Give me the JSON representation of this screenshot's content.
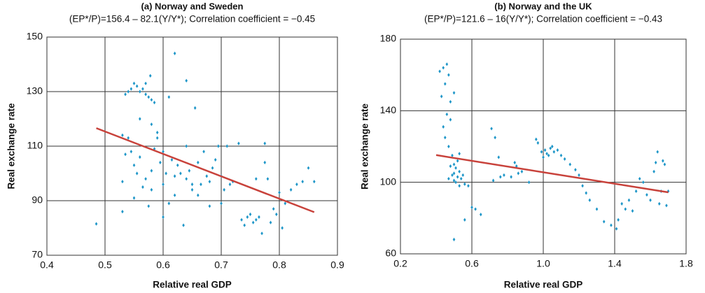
{
  "chart_data": [
    {
      "type": "scatter",
      "title": "(a) Norway and Sweden",
      "subtitle": "(EP*/P)=156.4 – 82.1(Y/Y*); Correlation coefficient = −0.45",
      "xlabel": "Relative real GDP",
      "ylabel": "Real exchange rate",
      "xlim": [
        0.4,
        0.9
      ],
      "ylim": [
        70,
        150
      ],
      "xticks": [
        0.4,
        0.5,
        0.6,
        0.7,
        0.8,
        0.9
      ],
      "yticks": [
        70,
        90,
        110,
        130,
        150
      ],
      "grid": true,
      "series": [
        {
          "color": "#1e96c8",
          "x": [
            0.485,
            0.53,
            0.53,
            0.535,
            0.54,
            0.545,
            0.55,
            0.555,
            0.56,
            0.565,
            0.57,
            0.575,
            0.58,
            0.585,
            0.57,
            0.578,
            0.545,
            0.55,
            0.555,
            0.56,
            0.565,
            0.57,
            0.575,
            0.58,
            0.585,
            0.59,
            0.595,
            0.6,
            0.6,
            0.605,
            0.61,
            0.61,
            0.615,
            0.62,
            0.62,
            0.625,
            0.63,
            0.635,
            0.64,
            0.64,
            0.645,
            0.65,
            0.655,
            0.66,
            0.665,
            0.67,
            0.675,
            0.68,
            0.685,
            0.69,
            0.695,
            0.7,
            0.705,
            0.71,
            0.715,
            0.73,
            0.735,
            0.74,
            0.745,
            0.75,
            0.755,
            0.76,
            0.765,
            0.77,
            0.775,
            0.775,
            0.78,
            0.785,
            0.79,
            0.795,
            0.8,
            0.805,
            0.81,
            0.82,
            0.83,
            0.84,
            0.86,
            0.85,
            0.59,
            0.54,
            0.56,
            0.58,
            0.6,
            0.62,
            0.64,
            0.66,
            0.68,
            0.7,
            0.72,
            0.76,
            0.65,
            0.58,
            0.55,
            0.53,
            0.535
          ],
          "values": [
            81.5,
            86,
            114,
            129,
            130,
            131,
            133,
            132,
            130,
            131,
            129,
            128,
            127,
            126,
            133,
            135.8,
            108,
            103,
            100,
            106,
            95,
            98,
            88,
            101,
            109,
            113,
            104,
            96,
            84,
            100,
            128,
            89,
            105,
            144,
            92,
            103,
            100,
            81,
            134,
            98,
            101,
            94,
            124,
            104,
            96,
            108,
            99,
            97,
            102,
            105,
            110,
            99,
            94,
            110,
            96,
            111,
            83,
            81,
            84,
            85,
            82,
            83,
            84,
            78,
            111,
            104,
            98,
            82,
            87,
            85,
            93,
            80,
            89,
            94,
            96,
            97,
            97,
            102,
            115,
            113,
            120,
            118,
            108,
            99,
            110,
            92,
            88,
            89,
            97,
            98,
            96,
            94,
            91,
            97,
            107
          ]
        }
      ],
      "fit": {
        "color": "#c8423b",
        "x": [
          0.485,
          0.86
        ],
        "values": [
          116.6,
          85.8
        ]
      }
    },
    {
      "type": "scatter",
      "title": "(b) Norway and the UK",
      "subtitle": "(EP*/P)=121.6 – 16(Y/Y*); Correlation coefficient = −0.43",
      "xlabel": "Relative real GDP",
      "ylabel": "Real exchange rate",
      "xlim": [
        0.2,
        1.8
      ],
      "ylim": [
        60,
        180
      ],
      "xticks": [
        0.2,
        0.6,
        {
          "value": 1,
          "label": "1.0"
        },
        1.4,
        1.8
      ],
      "yticks": [
        60,
        100,
        140,
        180
      ],
      "grid": true,
      "series": [
        {
          "color": "#1e96c8",
          "x": [
            0.42,
            0.43,
            0.44,
            0.45,
            0.46,
            0.47,
            0.48,
            0.5,
            0.44,
            0.45,
            0.46,
            0.47,
            0.48,
            0.49,
            0.5,
            0.5,
            0.51,
            0.51,
            0.52,
            0.52,
            0.53,
            0.53,
            0.54,
            0.55,
            0.56,
            0.5,
            0.56,
            0.58,
            0.6,
            0.62,
            0.65,
            0.47,
            0.48,
            0.49,
            0.5,
            0.53,
            0.71,
            0.73,
            0.72,
            0.75,
            0.76,
            0.78,
            0.82,
            0.84,
            0.85,
            0.86,
            0.88,
            0.92,
            0.96,
            0.97,
            0.99,
            1.0,
            1.01,
            1.02,
            1.03,
            1.04,
            1.05,
            1.06,
            1.08,
            1.1,
            1.12,
            1.15,
            1.18,
            1.2,
            1.22,
            1.24,
            1.26,
            1.3,
            1.34,
            1.38,
            1.41,
            1.42,
            1.44,
            1.46,
            1.48,
            1.5,
            1.52,
            1.54,
            1.56,
            1.58,
            1.6,
            1.62,
            1.63,
            1.64,
            1.65,
            1.66,
            1.67,
            1.68,
            1.69,
            1.7
          ],
          "values": [
            162,
            148,
            164,
            155,
            166,
            160,
            145,
            150,
            131,
            125,
            138,
            120,
            135,
            115,
            110,
            105,
            108,
            100,
            112,
            103,
            106,
            116,
            102,
            104,
            99,
            68,
            79,
            98,
            86,
            85,
            82,
            102,
            109,
            104,
            101,
            98,
            130,
            125,
            101,
            114,
            103,
            104,
            103,
            111,
            109,
            105,
            106,
            100,
            124,
            122,
            117,
            114,
            118,
            116,
            115,
            119,
            120,
            117,
            118,
            115,
            113,
            110,
            107,
            104,
            98,
            94,
            90,
            85,
            78,
            76,
            74,
            79,
            88,
            85,
            90,
            84,
            95,
            102,
            100,
            93,
            90,
            106,
            111,
            117,
            88,
            95,
            112,
            110,
            87,
            95
          ]
        }
      ],
      "fit": {
        "color": "#c8423b",
        "x": [
          0.4,
          1.7
        ],
        "values": [
          115.2,
          94.4
        ]
      }
    }
  ]
}
